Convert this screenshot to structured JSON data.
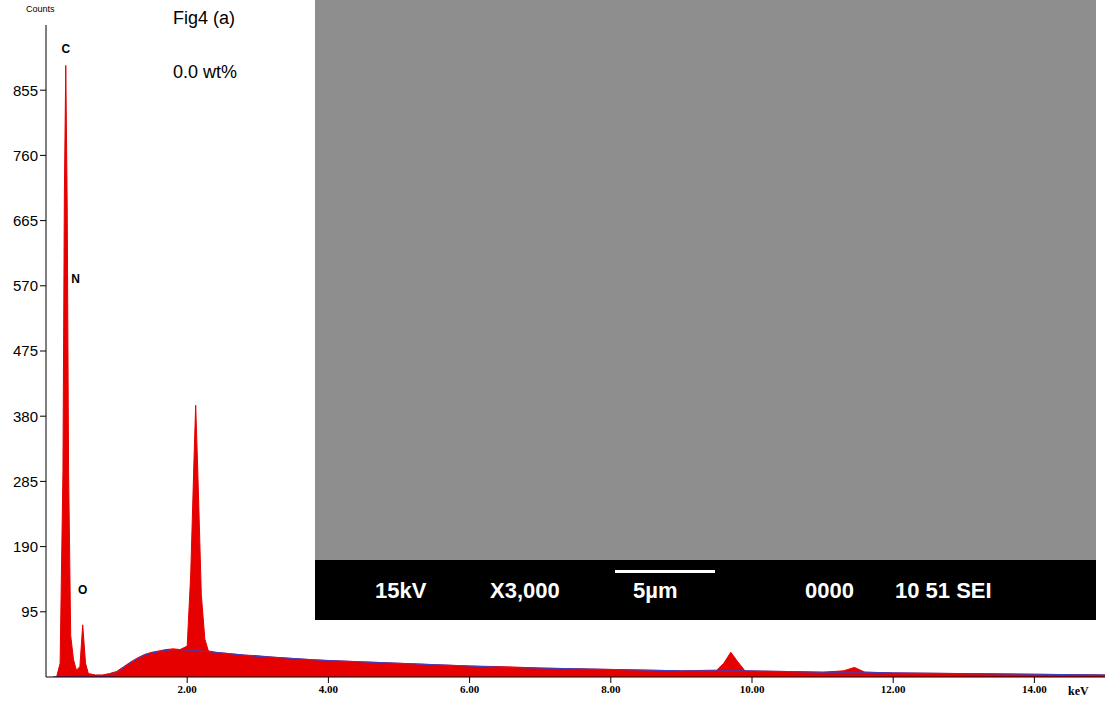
{
  "chart_data": {
    "type": "area",
    "title": "Fig4 (a)",
    "subtitle": "0.0 wt%",
    "x_label": "keV",
    "y_label": "Counts",
    "x": [
      0.1,
      0.15,
      0.2,
      0.24,
      0.26,
      0.28,
      0.3,
      0.32,
      0.35,
      0.39,
      0.43,
      0.48,
      0.52,
      0.56,
      0.6,
      0.7,
      0.8,
      0.9,
      1.0,
      1.1,
      1.2,
      1.3,
      1.4,
      1.5,
      1.6,
      1.7,
      1.8,
      1.9,
      2.0,
      2.05,
      2.1,
      2.12,
      2.15,
      2.2,
      2.25,
      2.3,
      2.4,
      2.6,
      2.8,
      3.0,
      3.2,
      3.5,
      3.8,
      4.0,
      4.5,
      5.0,
      5.5,
      6.0,
      6.5,
      7.0,
      7.5,
      8.0,
      8.5,
      9.0,
      9.5,
      9.6,
      9.7,
      9.8,
      9.9,
      10.5,
      11.0,
      11.3,
      11.45,
      11.6,
      12.0,
      13.0,
      14.0,
      15.0
    ],
    "series": [
      {
        "type": "area",
        "color": "#e60000",
        "values": [
          0,
          0,
          20,
          300,
          700,
          891,
          690,
          300,
          60,
          25,
          10,
          15,
          76,
          20,
          5,
          3,
          3,
          5,
          8,
          15,
          22,
          28,
          33,
          36,
          38,
          40,
          41,
          40,
          45,
          150,
          330,
          396,
          300,
          120,
          55,
          38,
          36,
          34,
          32,
          31,
          29,
          27,
          25,
          24,
          22,
          20,
          18,
          16,
          15,
          13,
          12,
          11,
          10,
          9,
          10,
          20,
          36,
          22,
          9,
          8,
          7,
          9,
          14,
          7,
          6,
          5,
          4,
          3
        ]
      },
      {
        "type": "line",
        "color": "#3344cc",
        "values": [
          0,
          0,
          0,
          0,
          0,
          0,
          0,
          0,
          0,
          0,
          0,
          0,
          0,
          0,
          0,
          0,
          0,
          0,
          6,
          14,
          21,
          27,
          32,
          35,
          37,
          39,
          40,
          40,
          39,
          39,
          39,
          39,
          38,
          38,
          37,
          37,
          36,
          34,
          32,
          30,
          29,
          27,
          25,
          24,
          22,
          20,
          18,
          16,
          14,
          13,
          12,
          11,
          10,
          9,
          9,
          9,
          9,
          9,
          9,
          8,
          7,
          7,
          7,
          7,
          6,
          5,
          4,
          3
        ]
      }
    ],
    "xlim": [
      0,
      15
    ],
    "xticks": [
      {
        "value": 2,
        "label": "2.00"
      },
      {
        "value": 4,
        "label": "4.00"
      },
      {
        "value": 6,
        "label": "6.00"
      },
      {
        "value": 8,
        "label": "8.00"
      },
      {
        "value": 10,
        "label": "10.00"
      },
      {
        "value": 12,
        "label": "12.00"
      },
      {
        "value": 14,
        "label": "14.00"
      }
    ],
    "ylim": [
      0,
      950
    ],
    "yticks": [
      95,
      190,
      285,
      380,
      475,
      570,
      665,
      760,
      855
    ],
    "grid": false,
    "annotations": [
      {
        "text": "C",
        "x": 0.28,
        "y": 915
      },
      {
        "text": "N",
        "x": 0.42,
        "y": 581
      },
      {
        "text": "O",
        "x": 0.52,
        "y": 127
      }
    ]
  },
  "inset": {
    "caption": [
      "15kV",
      "X3,000",
      "5µm",
      "0000",
      "10 51 SEI"
    ]
  }
}
